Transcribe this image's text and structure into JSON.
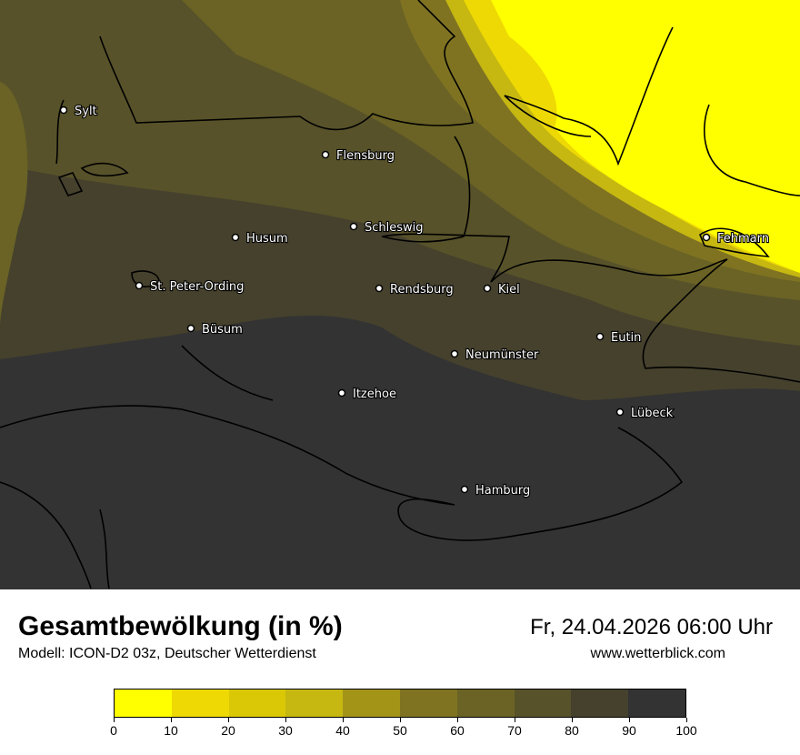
{
  "header": {
    "title": "Gesamtbewölkung (in %)",
    "subtitle": "Modell: ICON-D2 03z, Deutscher Wetterdienst",
    "datetime": "Fr, 24.04.2026 06:00 Uhr",
    "website": "www.wetterblick.com"
  },
  "legend": {
    "colors": [
      "#ffff00",
      "#eed904",
      "#dac807",
      "#c6b811",
      "#a39418",
      "#7f7322",
      "#6a6325",
      "#58522a",
      "#45412d",
      "#333333"
    ],
    "ticks": [
      "0",
      "10",
      "20",
      "30",
      "40",
      "50",
      "60",
      "70",
      "80",
      "90",
      "100"
    ]
  },
  "cities": [
    {
      "name": "Sylt"
    },
    {
      "name": "Flensburg"
    },
    {
      "name": "Schleswig"
    },
    {
      "name": "Husum"
    },
    {
      "name": "St. Peter-Ording"
    },
    {
      "name": "Rendsburg"
    },
    {
      "name": "Kiel"
    },
    {
      "name": "Fehmarn"
    },
    {
      "name": "Büsum"
    },
    {
      "name": "Eutin"
    },
    {
      "name": "Neumünster"
    },
    {
      "name": "Itzehoe"
    },
    {
      "name": "Lübeck"
    },
    {
      "name": "Hamburg"
    }
  ]
}
